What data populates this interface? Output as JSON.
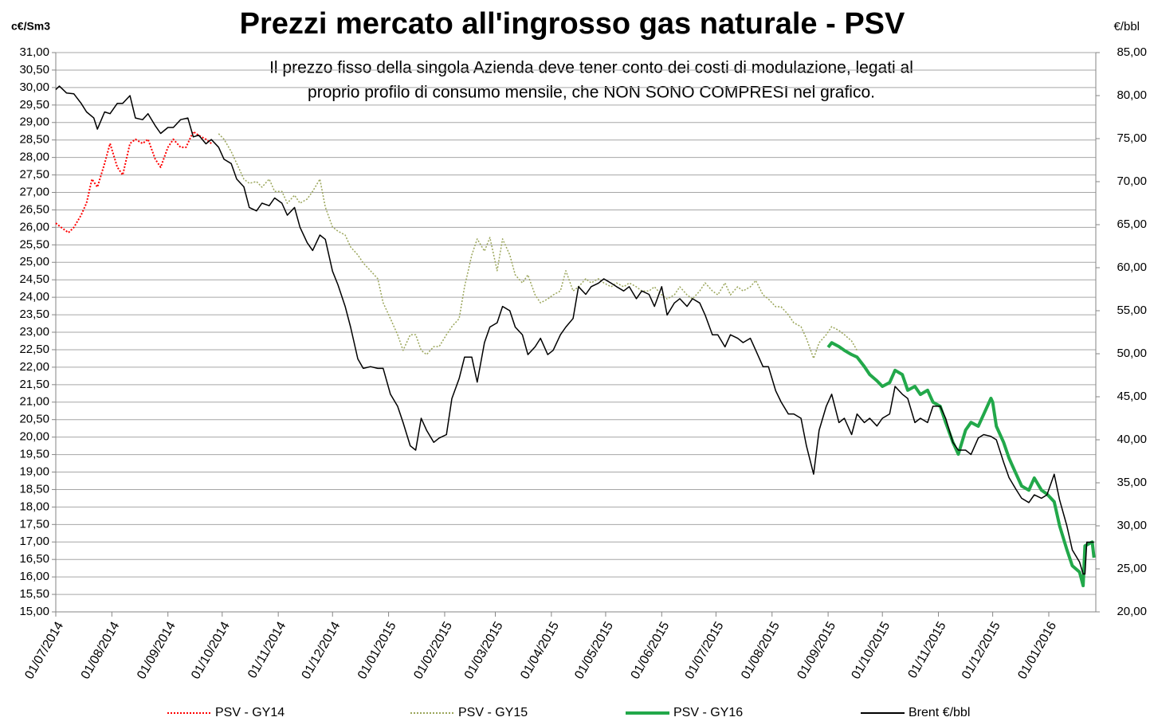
{
  "chart_data": {
    "type": "line",
    "title": "Prezzi mercato all'ingrosso gas naturale - PSV",
    "annotations": [
      "Il prezzo fisso della singola  Azienda deve tener conto dei costi di modulazione, legati al",
      "proprio profilo di consumo mensile, che NON SONO COMPRESI nel grafico."
    ],
    "y_label": "c€/Sm3",
    "y2_label": "€/bbl",
    "grid": true,
    "legend": "bottom",
    "xlim": [
      "2014-07-01",
      "2016-01-27"
    ],
    "xticks": [
      {
        "value": "2014-07-01",
        "label": "01/07/2014"
      },
      {
        "value": "2014-08-01",
        "label": "01/08/2014"
      },
      {
        "value": "2014-09-01",
        "label": "01/09/2014"
      },
      {
        "value": "2014-10-01",
        "label": "01/10/2014"
      },
      {
        "value": "2014-11-01",
        "label": "01/11/2014"
      },
      {
        "value": "2014-12-01",
        "label": "01/12/2014"
      },
      {
        "value": "2015-01-01",
        "label": "01/01/2015"
      },
      {
        "value": "2015-02-01",
        "label": "01/02/2015"
      },
      {
        "value": "2015-03-01",
        "label": "01/03/2015"
      },
      {
        "value": "2015-04-01",
        "label": "01/04/2015"
      },
      {
        "value": "2015-05-01",
        "label": "01/05/2015"
      },
      {
        "value": "2015-06-01",
        "label": "01/06/2015"
      },
      {
        "value": "2015-07-01",
        "label": "01/07/2015"
      },
      {
        "value": "2015-08-01",
        "label": "01/08/2015"
      },
      {
        "value": "2015-09-01",
        "label": "01/09/2015"
      },
      {
        "value": "2015-10-01",
        "label": "01/10/2015"
      },
      {
        "value": "2015-11-01",
        "label": "01/11/2015"
      },
      {
        "value": "2015-12-01",
        "label": "01/12/2015"
      },
      {
        "value": "2016-01-01",
        "label": "01/01/2016"
      }
    ],
    "ylim": [
      15,
      31
    ],
    "yticks": [
      {
        "value": 15,
        "label": "15,00"
      },
      {
        "value": 15.5,
        "label": "15,50"
      },
      {
        "value": 16,
        "label": "16,00"
      },
      {
        "value": 16.5,
        "label": "16,50"
      },
      {
        "value": 17,
        "label": "17,00"
      },
      {
        "value": 17.5,
        "label": "17,50"
      },
      {
        "value": 18,
        "label": "18,00"
      },
      {
        "value": 18.5,
        "label": "18,50"
      },
      {
        "value": 19,
        "label": "19,00"
      },
      {
        "value": 19.5,
        "label": "19,50"
      },
      {
        "value": 20,
        "label": "20,00"
      },
      {
        "value": 20.5,
        "label": "20,50"
      },
      {
        "value": 21,
        "label": "21,00"
      },
      {
        "value": 21.5,
        "label": "21,50"
      },
      {
        "value": 22,
        "label": "22,00"
      },
      {
        "value": 22.5,
        "label": "22,50"
      },
      {
        "value": 23,
        "label": "23,00"
      },
      {
        "value": 23.5,
        "label": "23,50"
      },
      {
        "value": 24,
        "label": "24,00"
      },
      {
        "value": 24.5,
        "label": "24,50"
      },
      {
        "value": 25,
        "label": "25,00"
      },
      {
        "value": 25.5,
        "label": "25,50"
      },
      {
        "value": 26,
        "label": "26,00"
      },
      {
        "value": 26.5,
        "label": "26,50"
      },
      {
        "value": 27,
        "label": "27,00"
      },
      {
        "value": 27.5,
        "label": "27,50"
      },
      {
        "value": 28,
        "label": "28,00"
      },
      {
        "value": 28.5,
        "label": "28,50"
      },
      {
        "value": 29,
        "label": "29,00"
      },
      {
        "value": 29.5,
        "label": "29,50"
      },
      {
        "value": 30,
        "label": "30,00"
      },
      {
        "value": 30.5,
        "label": "30,50"
      },
      {
        "value": 31,
        "label": "31,00"
      }
    ],
    "y2lim": [
      20,
      85
    ],
    "y2ticks": [
      {
        "value": 20,
        "label": "20,00"
      },
      {
        "value": 25,
        "label": "25,00"
      },
      {
        "value": 30,
        "label": "30,00"
      },
      {
        "value": 35,
        "label": "35,00"
      },
      {
        "value": 40,
        "label": "40,00"
      },
      {
        "value": 45,
        "label": "45,00"
      },
      {
        "value": 50,
        "label": "50,00"
      },
      {
        "value": 55,
        "label": "55,00"
      },
      {
        "value": 60,
        "label": "60,00"
      },
      {
        "value": 65,
        "label": "65,00"
      },
      {
        "value": 70,
        "label": "70,00"
      },
      {
        "value": 75,
        "label": "75,00"
      },
      {
        "value": 80,
        "label": "80,00"
      },
      {
        "value": 85,
        "label": "85,00"
      }
    ],
    "series": [
      {
        "name": "PSV - GY14",
        "color": "#ff0000",
        "style": "dotted",
        "width": 2,
        "x": [
          "2014-07-01",
          "2014-07-04",
          "2014-07-08",
          "2014-07-11",
          "2014-07-15",
          "2014-07-18",
          "2014-07-21",
          "2014-07-24",
          "2014-07-28",
          "2014-07-31",
          "2014-08-04",
          "2014-08-07",
          "2014-08-11",
          "2014-08-14",
          "2014-08-18",
          "2014-08-21",
          "2014-08-25",
          "2014-08-28",
          "2014-09-01",
          "2014-09-04",
          "2014-09-08",
          "2014-09-11",
          "2014-09-15",
          "2014-09-18",
          "2014-09-22",
          "2014-09-25"
        ],
        "values": [
          26.12,
          26.0,
          25.85,
          26.0,
          26.35,
          26.7,
          27.38,
          27.15,
          27.83,
          28.4,
          27.72,
          27.5,
          28.4,
          28.52,
          28.4,
          28.52,
          27.95,
          27.72,
          28.29,
          28.52,
          28.29,
          28.29,
          28.74,
          28.63,
          28.52,
          28.4
        ]
      },
      {
        "name": "PSV - GY15",
        "color": "#9aa55a",
        "style": "dotted",
        "width": 1.5,
        "x": [
          "2014-09-29",
          "2014-10-02",
          "2014-10-06",
          "2014-10-09",
          "2014-10-13",
          "2014-10-16",
          "2014-10-20",
          "2014-10-23",
          "2014-10-27",
          "2014-10-30",
          "2014-11-03",
          "2014-11-06",
          "2014-11-10",
          "2014-11-13",
          "2014-11-17",
          "2014-11-20",
          "2014-11-24",
          "2014-11-27",
          "2014-12-01",
          "2014-12-04",
          "2014-12-08",
          "2014-12-11",
          "2014-12-15",
          "2014-12-18",
          "2014-12-22",
          "2014-12-26",
          "2014-12-29",
          "2015-01-02",
          "2015-01-06",
          "2015-01-09",
          "2015-01-13",
          "2015-01-16",
          "2015-01-19",
          "2015-01-22",
          "2015-01-26",
          "2015-01-29",
          "2015-02-02",
          "2015-02-05",
          "2015-02-09",
          "2015-02-12",
          "2015-02-16",
          "2015-02-19",
          "2015-02-23",
          "2015-02-26",
          "2015-03-02",
          "2015-03-05",
          "2015-03-09",
          "2015-03-12",
          "2015-03-16",
          "2015-03-19",
          "2015-03-23",
          "2015-03-26",
          "2015-03-30",
          "2015-04-02",
          "2015-04-06",
          "2015-04-09",
          "2015-04-13",
          "2015-04-16",
          "2015-04-20",
          "2015-04-23",
          "2015-04-27",
          "2015-04-30",
          "2015-05-04",
          "2015-05-07",
          "2015-05-11",
          "2015-05-14",
          "2015-05-18",
          "2015-05-21",
          "2015-05-25",
          "2015-05-28",
          "2015-06-01",
          "2015-06-04",
          "2015-06-08",
          "2015-06-11",
          "2015-06-15",
          "2015-06-18",
          "2015-06-22",
          "2015-06-25",
          "2015-06-29",
          "2015-07-02",
          "2015-07-06",
          "2015-07-09",
          "2015-07-13",
          "2015-07-16",
          "2015-07-20",
          "2015-07-23",
          "2015-07-27",
          "2015-07-30",
          "2015-08-03",
          "2015-08-06",
          "2015-08-10",
          "2015-08-13",
          "2015-08-17",
          "2015-08-20",
          "2015-08-24",
          "2015-08-27",
          "2015-08-31",
          "2015-09-03",
          "2015-09-07",
          "2015-09-10",
          "2015-09-14",
          "2015-09-17"
        ],
        "values": [
          28.68,
          28.52,
          28.17,
          27.83,
          27.38,
          27.26,
          27.31,
          27.15,
          27.38,
          27.03,
          27.03,
          26.69,
          26.92,
          26.69,
          26.81,
          27.03,
          27.38,
          26.58,
          26.01,
          25.89,
          25.78,
          25.44,
          25.21,
          24.98,
          24.76,
          24.53,
          23.84,
          23.39,
          22.93,
          22.48,
          22.93,
          22.93,
          22.48,
          22.36,
          22.59,
          22.59,
          22.93,
          23.16,
          23.39,
          24.3,
          25.21,
          25.67,
          25.32,
          25.71,
          24.76,
          25.67,
          25.21,
          24.64,
          24.41,
          24.64,
          24.07,
          23.84,
          23.95,
          24.07,
          24.18,
          24.76,
          24.18,
          24.3,
          24.53,
          24.41,
          24.53,
          24.41,
          24.3,
          24.41,
          24.3,
          24.41,
          24.3,
          24.18,
          24.18,
          24.3,
          24.07,
          23.95,
          24.07,
          24.3,
          24.07,
          23.95,
          24.18,
          24.41,
          24.18,
          24.07,
          24.41,
          24.07,
          24.3,
          24.18,
          24.3,
          24.48,
          24.07,
          23.95,
          23.73,
          23.73,
          23.5,
          23.27,
          23.16,
          22.82,
          22.25,
          22.7,
          22.93,
          23.16,
          23.05,
          22.93,
          22.75,
          22.48
        ]
      },
      {
        "name": "PSV - GY16",
        "color": "#22a84a",
        "style": "solid",
        "width": 4,
        "x": [
          "2015-09-01",
          "2015-09-03",
          "2015-09-07",
          "2015-09-10",
          "2015-09-14",
          "2015-09-17",
          "2015-09-21",
          "2015-09-24",
          "2015-09-28",
          "2015-10-01",
          "2015-10-05",
          "2015-10-08",
          "2015-10-12",
          "2015-10-15",
          "2015-10-19",
          "2015-10-22",
          "2015-10-26",
          "2015-10-29",
          "2015-11-02",
          "2015-11-05",
          "2015-11-09",
          "2015-11-12",
          "2015-11-16",
          "2015-11-19",
          "2015-11-23",
          "2015-11-26",
          "2015-11-30",
          "2015-12-01",
          "2015-12-03",
          "2015-12-07",
          "2015-12-10",
          "2015-12-14",
          "2015-12-17",
          "2015-12-21",
          "2015-12-24",
          "2015-12-28",
          "2015-12-31",
          "2016-01-04",
          "2016-01-07",
          "2016-01-11",
          "2016-01-14",
          "2016-01-18",
          "2016-01-20",
          "2016-01-21",
          "2016-01-25",
          "2016-01-26"
        ],
        "values": [
          22.57,
          22.7,
          22.59,
          22.48,
          22.36,
          22.29,
          22.02,
          21.79,
          21.61,
          21.45,
          21.56,
          21.91,
          21.79,
          21.34,
          21.45,
          21.22,
          21.34,
          21.0,
          20.88,
          20.42,
          19.85,
          19.51,
          20.2,
          20.42,
          20.31,
          20.65,
          21.11,
          21.0,
          20.31,
          19.85,
          19.4,
          18.94,
          18.6,
          18.48,
          18.83,
          18.48,
          18.37,
          18.15,
          17.46,
          16.78,
          16.32,
          16.14,
          15.75,
          16.89,
          17.0,
          16.55
        ]
      },
      {
        "name": "Brent €/bbl",
        "color": "#000000",
        "style": "solid",
        "width": 1.5,
        "axis": "y2",
        "x": [
          "2014-07-01",
          "2014-07-03",
          "2014-07-07",
          "2014-07-11",
          "2014-07-15",
          "2014-07-18",
          "2014-07-22",
          "2014-07-24",
          "2014-07-28",
          "2014-07-31",
          "2014-08-04",
          "2014-08-07",
          "2014-08-11",
          "2014-08-14",
          "2014-08-18",
          "2014-08-21",
          "2014-08-25",
          "2014-08-28",
          "2014-09-01",
          "2014-09-04",
          "2014-09-08",
          "2014-09-12",
          "2014-09-15",
          "2014-09-18",
          "2014-09-22",
          "2014-09-25",
          "2014-09-29",
          "2014-10-02",
          "2014-10-06",
          "2014-10-09",
          "2014-10-13",
          "2014-10-16",
          "2014-10-20",
          "2014-10-23",
          "2014-10-27",
          "2014-10-30",
          "2014-11-03",
          "2014-11-06",
          "2014-11-10",
          "2014-11-13",
          "2014-11-17",
          "2014-11-20",
          "2014-11-24",
          "2014-11-27",
          "2014-12-01",
          "2014-12-04",
          "2014-12-08",
          "2014-12-11",
          "2014-12-15",
          "2014-12-18",
          "2014-12-22",
          "2014-12-26",
          "2014-12-29",
          "2015-01-02",
          "2015-01-06",
          "2015-01-09",
          "2015-01-13",
          "2015-01-16",
          "2015-01-19",
          "2015-01-22",
          "2015-01-26",
          "2015-01-29",
          "2015-02-02",
          "2015-02-05",
          "2015-02-09",
          "2015-02-12",
          "2015-02-16",
          "2015-02-19",
          "2015-02-23",
          "2015-02-26",
          "2015-03-02",
          "2015-03-05",
          "2015-03-09",
          "2015-03-12",
          "2015-03-16",
          "2015-03-19",
          "2015-03-23",
          "2015-03-26",
          "2015-03-30",
          "2015-04-02",
          "2015-04-06",
          "2015-04-09",
          "2015-04-13",
          "2015-04-16",
          "2015-04-20",
          "2015-04-23",
          "2015-04-27",
          "2015-04-30",
          "2015-05-04",
          "2015-05-07",
          "2015-05-11",
          "2015-05-14",
          "2015-05-18",
          "2015-05-21",
          "2015-05-25",
          "2015-05-28",
          "2015-06-01",
          "2015-06-04",
          "2015-06-08",
          "2015-06-11",
          "2015-06-15",
          "2015-06-18",
          "2015-06-22",
          "2015-06-25",
          "2015-06-29",
          "2015-07-02",
          "2015-07-06",
          "2015-07-09",
          "2015-07-13",
          "2015-07-16",
          "2015-07-20",
          "2015-07-23",
          "2015-07-27",
          "2015-07-30",
          "2015-08-03",
          "2015-08-06",
          "2015-08-10",
          "2015-08-13",
          "2015-08-17",
          "2015-08-20",
          "2015-08-24",
          "2015-08-27",
          "2015-08-31",
          "2015-09-03",
          "2015-09-07",
          "2015-09-10",
          "2015-09-14",
          "2015-09-17",
          "2015-09-21",
          "2015-09-24",
          "2015-09-28",
          "2015-10-01",
          "2015-10-05",
          "2015-10-08",
          "2015-10-12",
          "2015-10-15",
          "2015-10-19",
          "2015-10-22",
          "2015-10-26",
          "2015-10-29",
          "2015-11-02",
          "2015-11-05",
          "2015-11-09",
          "2015-11-12",
          "2015-11-16",
          "2015-11-19",
          "2015-11-23",
          "2015-11-26",
          "2015-11-30",
          "2015-12-03",
          "2015-12-07",
          "2015-12-10",
          "2015-12-14",
          "2015-12-17",
          "2015-12-21",
          "2015-12-24",
          "2015-12-28",
          "2015-12-31",
          "2016-01-04",
          "2016-01-07",
          "2016-01-11",
          "2016-01-14",
          "2016-01-18",
          "2016-01-20",
          "2016-01-21",
          "2016-01-22",
          "2016-01-26"
        ],
        "values": [
          80.7,
          81.1,
          80.3,
          80.2,
          79.1,
          78.1,
          77.4,
          76.1,
          78.1,
          77.9,
          79.1,
          79.1,
          80.0,
          77.4,
          77.2,
          77.9,
          76.5,
          75.6,
          76.3,
          76.3,
          77.2,
          77.4,
          75.2,
          75.4,
          74.4,
          74.9,
          74.0,
          72.6,
          72.1,
          70.3,
          69.4,
          67.0,
          66.6,
          67.5,
          67.2,
          68.1,
          67.5,
          66.1,
          67.0,
          64.7,
          62.9,
          62.0,
          63.8,
          63.3,
          59.6,
          58.0,
          55.5,
          53.1,
          49.4,
          48.3,
          48.5,
          48.3,
          48.3,
          45.3,
          43.9,
          42.0,
          39.3,
          38.8,
          42.5,
          41.1,
          39.7,
          40.2,
          40.6,
          44.8,
          47.1,
          49.6,
          49.6,
          46.7,
          51.3,
          53.1,
          53.6,
          55.5,
          55.0,
          53.1,
          52.2,
          49.9,
          50.8,
          51.8,
          49.9,
          50.4,
          52.2,
          53.1,
          54.1,
          57.8,
          56.9,
          57.8,
          58.2,
          58.7,
          58.2,
          57.8,
          57.3,
          57.8,
          56.4,
          57.3,
          56.9,
          55.5,
          57.8,
          54.5,
          55.9,
          56.4,
          55.5,
          56.4,
          55.9,
          54.5,
          52.2,
          52.2,
          50.8,
          52.2,
          51.8,
          51.3,
          51.8,
          50.4,
          48.5,
          48.5,
          45.7,
          44.4,
          43.0,
          43.0,
          42.5,
          39.3,
          36.0,
          41.1,
          43.9,
          45.3,
          42.0,
          42.5,
          40.6,
          43.0,
          42.0,
          42.5,
          41.6,
          42.5,
          43.0,
          46.2,
          45.3,
          44.8,
          42.0,
          42.5,
          42.0,
          43.9,
          43.9,
          42.5,
          39.7,
          38.8,
          38.8,
          38.3,
          40.2,
          40.6,
          40.4,
          40.0,
          37.4,
          35.6,
          34.2,
          33.2,
          32.7,
          33.6,
          33.2,
          33.6,
          36.0,
          33.0,
          30.0,
          27.2,
          25.8,
          24.4,
          24.4,
          28.1,
          28.1
        ]
      }
    ]
  }
}
